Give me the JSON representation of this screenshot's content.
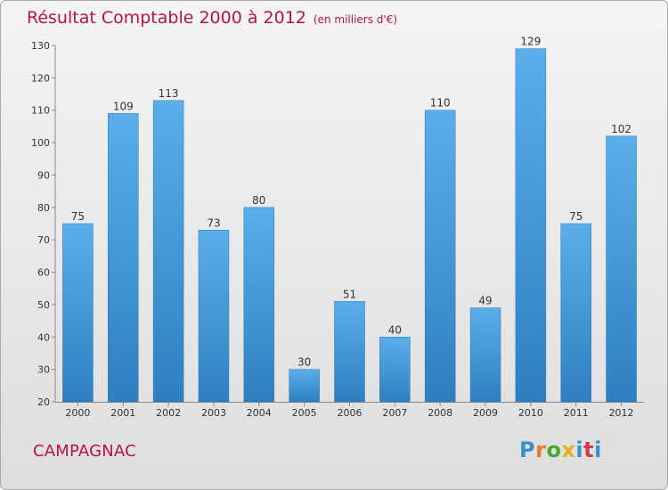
{
  "header": {
    "title": "Résultat Comptable 2000 à 2012",
    "unit": "(en milliers d'€)"
  },
  "footer": {
    "place": "CAMPAGNAC",
    "logo": "Proxiti",
    "logo_colors": [
      "#3a8fd0",
      "#e8792c",
      "#4aa72f",
      "#e0b21e",
      "#3a8fd0",
      "#d23a4a",
      "#3a8fd0"
    ]
  },
  "chart_data": {
    "type": "bar",
    "categories": [
      "2000",
      "2001",
      "2002",
      "2003",
      "2004",
      "2005",
      "2006",
      "2007",
      "2008",
      "2009",
      "2010",
      "2011",
      "2012"
    ],
    "values": [
      75,
      109,
      113,
      73,
      80,
      30,
      51,
      40,
      110,
      49,
      129,
      75,
      102
    ],
    "ylim": [
      20,
      130
    ],
    "yticks": [
      20,
      30,
      40,
      50,
      60,
      70,
      80,
      90,
      100,
      110,
      120,
      130
    ],
    "grid": false,
    "bar_color": "#4f9fdf"
  }
}
